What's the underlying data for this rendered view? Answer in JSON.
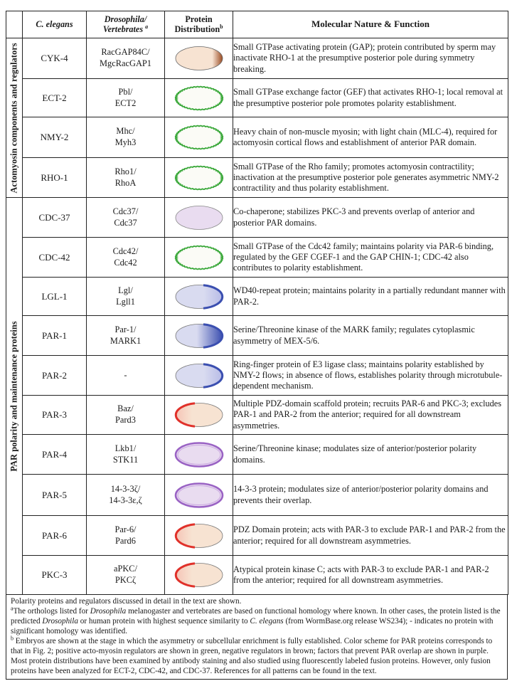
{
  "header": {
    "c_elegans": "C. elegans",
    "ortho_line1": "Drosophila/",
    "ortho_line2": "Vertebrates",
    "ortho_sup": "a",
    "dist_line1": "Protein",
    "dist_line2": "Distribution",
    "dist_sup": "b",
    "function": "Molecular Nature & Function"
  },
  "groups": {
    "actomyosin": "Actomyosin components and regulators",
    "par": "PAR polarity and maintenance proteins"
  },
  "colors": {
    "embryo_fill": "#f7e3d2",
    "green": "#3aa83a",
    "blue": "#3b4fb0",
    "red": "#e0312a",
    "purple": "#9a63c4",
    "brown": "#9a4a22",
    "lavender": "#e9dcf0",
    "bluefill": "#d9dbf0"
  },
  "rows": [
    {
      "gene": "CYK-4",
      "o1": "RacGAP84C/",
      "o2": "MgcRacGAP1",
      "dist": "brown-posterior",
      "func": "Small GTPase activating protein (GAP); protein contributed by sperm may inactivate RHO-1 at the presumptive posterior pole during symmetry breaking."
    },
    {
      "gene": "ECT-2",
      "o1": "Pbl/",
      "o2": "ECT2",
      "dist": "green-cortex",
      "func": "Small GTPase exchange factor (GEF) that activates RHO-1; local removal at the presumptive posterior pole promotes polarity establishment."
    },
    {
      "gene": "NMY-2",
      "o1": "Mhc/",
      "o2": "Myh3",
      "dist": "green-cortex",
      "func": "Heavy chain of non-muscle myosin; with light chain (MLC-4), required for actomyosin cortical flows and establishment of anterior PAR domain."
    },
    {
      "gene": "RHO-1",
      "o1": "Rho1/",
      "o2": "RhoA",
      "dist": "green-cortex",
      "func": "Small GTPase of the Rho family; promotes actomyosin contractility; inactivation at the presumptive posterior pole generates asymmetric NMY-2 contractility and thus polarity establishment."
    },
    {
      "gene": "CDC-37",
      "o1": "Cdc37/",
      "o2": "Cdc37",
      "dist": "lavender-uniform",
      "func": "Co-chaperone; stabilizes PKC-3 and prevents overlap of anterior and posterior PAR domains."
    },
    {
      "gene": "CDC-42",
      "o1": "Cdc42/",
      "o2": "Cdc42",
      "dist": "green-cortex",
      "func": "Small GTPase of the Cdc42 family; maintains polarity via PAR-6 binding, regulated by the GEF CGEF-1 and the GAP CHIN-1; CDC-42 also contributes to polarity establishment."
    },
    {
      "gene": "LGL-1",
      "o1": "Lgl/",
      "o2": "Lgll1",
      "dist": "blue-posterior",
      "func": "WD40-repeat protein; maintains polarity in a partially redundant manner with PAR-2."
    },
    {
      "gene": "PAR-1",
      "o1": "Par-1/",
      "o2": "MARK1",
      "dist": "blue-posterior-gradient",
      "func": "Serine/Threonine kinase of the MARK family; regulates cytoplasmic asymmetry of MEX-5/6."
    },
    {
      "gene": "PAR-2",
      "o1": "-",
      "o2": "",
      "dist": "blue-posterior",
      "func": "Ring-finger protein of E3 ligase class; maintains polarity established by NMY-2 flows; in absence of flows, establishes polarity through microtubule-dependent mechanism."
    },
    {
      "gene": "PAR-3",
      "o1": "Baz/",
      "o2": "Pard3",
      "dist": "red-anterior",
      "func": "Multiple PDZ-domain scaffold protein; recruits PAR-6 and PKC-3; excludes PAR-1 and PAR-2 from the anterior; required for all downstream asymmetries."
    },
    {
      "gene": "PAR-4",
      "o1": "Lkb1/",
      "o2": "STK11",
      "dist": "purple-cortex",
      "func": "Serine/Threonine kinase; modulates size of anterior/posterior polarity domains."
    },
    {
      "gene": "PAR-5",
      "o1": "14-3-3ζ/",
      "o2": "14-3-3ε,ζ",
      "dist": "purple-cortex",
      "func": "14-3-3 protein; modulates size of anterior/posterior polarity domains and prevents their overlap."
    },
    {
      "gene": "PAR-6",
      "o1": "Par-6/",
      "o2": "Pard6",
      "dist": "red-anterior",
      "func": "PDZ Domain protein; acts with PAR-3 to exclude PAR-1 and PAR-2 from the anterior; required for all downstream asymmetries."
    },
    {
      "gene": "PKC-3",
      "o1": "aPKC/",
      "o2": "PKCζ",
      "dist": "red-anterior",
      "func": "Atypical protein kinase C; acts with PAR-3 to exclude PAR-1 and PAR-2 from the anterior; required for all downstream asymmetries."
    }
  ],
  "footnotes": {
    "intro": "Polarity proteins and regulators discussed in detail in the text are shown.",
    "a_mark": "a",
    "a_part1": "The orthologs listed for ",
    "a_ital1": "Drosophila",
    "a_part2": " melanogaster and vertebrates are based on functional homology where known. In other cases, the protein listed is the predicted ",
    "a_ital2": "Drosophila",
    "a_part3": " or human protein with highest sequence similarity to ",
    "a_ital3": "C. elegans",
    "a_part4": " (from WormBase.org release WS234); - indicates no protein with significant homology was identified.",
    "b_mark": "b",
    "b_text": " Embryos are shown at the stage in which the asymmetry or subcellular enrichment is fully established. Color scheme for PAR proteins corresponds to that in Fig. 2; positive acto-myosin regulators are shown in green, negative regulators in brown; factors that prevent PAR overlap are shown in purple. Most protein distributions have been examined by antibody staining and also studied using fluorescently labeled fusion proteins. However, only fusion proteins have been analyzed for ECT-2, CDC-42, and CDC-37. References for all patterns can be found in the text."
  }
}
